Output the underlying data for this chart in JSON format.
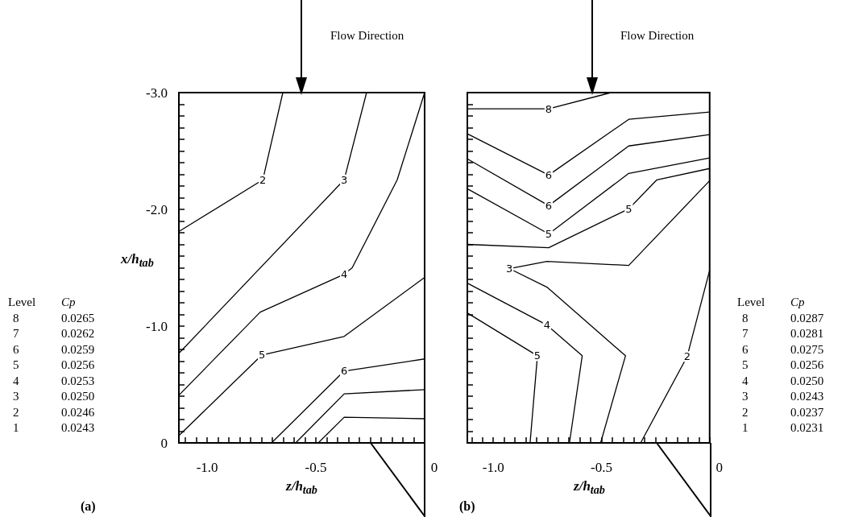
{
  "chart_data": [
    {
      "type": "line",
      "xlabel": "z/h$_{tab}$",
      "ylabel": "x/h$_{tab}$",
      "marker": "none",
      "xlim": [
        -1.13,
        0
      ],
      "ylim": [
        0,
        -3
      ],
      "xticks": [
        {
          "value": -1.1,
          "label": null
        },
        {
          "value": -1.05,
          "label": null
        },
        {
          "value": -1,
          "label": "-1.0"
        },
        {
          "value": -0.95,
          "label": null
        },
        {
          "value": -0.9,
          "label": null
        },
        {
          "value": -0.85,
          "label": null
        },
        {
          "value": -0.8,
          "label": null
        },
        {
          "value": -0.75,
          "label": null
        },
        {
          "value": -0.7,
          "label": null
        },
        {
          "value": -0.65,
          "label": null
        },
        {
          "value": -0.6,
          "label": null
        },
        {
          "value": -0.55,
          "label": null
        },
        {
          "value": -0.5,
          "label": "-0.5"
        },
        {
          "value": -0.45,
          "label": null
        },
        {
          "value": -0.4,
          "label": null
        },
        {
          "value": -0.35,
          "label": null
        },
        {
          "value": -0.3,
          "label": null
        },
        {
          "value": -0.25,
          "label": null
        },
        {
          "value": -0.2,
          "label": null
        },
        {
          "value": -0.15,
          "label": null
        },
        {
          "value": -0.1,
          "label": null
        },
        {
          "value": -0.05,
          "label": null
        },
        {
          "value": 0,
          "label": "0"
        }
      ],
      "yticks": [
        {
          "value": -3,
          "label": "-3.0"
        },
        {
          "value": -2.9,
          "label": null
        },
        {
          "value": -2.8,
          "label": null
        },
        {
          "value": -2.7,
          "label": null
        },
        {
          "value": -2.6,
          "label": null
        },
        {
          "value": -2.5,
          "label": null
        },
        {
          "value": -2.4,
          "label": null
        },
        {
          "value": -2.3,
          "label": null
        },
        {
          "value": -2.2,
          "label": null
        },
        {
          "value": -2.1,
          "label": null
        },
        {
          "value": -2,
          "label": "-2.0"
        },
        {
          "value": -1.9,
          "label": null
        },
        {
          "value": -1.8,
          "label": null
        },
        {
          "value": -1.7,
          "label": null
        },
        {
          "value": -1.6,
          "label": null
        },
        {
          "value": -1.5,
          "label": null
        },
        {
          "value": -1.4,
          "label": null
        },
        {
          "value": -1.3,
          "label": null
        },
        {
          "value": -1.2,
          "label": null
        },
        {
          "value": -1.1,
          "label": null
        },
        {
          "value": -1,
          "label": "-1.0"
        },
        {
          "value": -0.9,
          "label": null
        },
        {
          "value": -0.8,
          "label": null
        },
        {
          "value": -0.7,
          "label": null
        },
        {
          "value": -0.6,
          "label": null
        },
        {
          "value": -0.5,
          "label": null
        },
        {
          "value": -0.4,
          "label": null
        },
        {
          "value": -0.3,
          "label": null
        },
        {
          "value": -0.2,
          "label": null
        },
        {
          "value": -0.1,
          "label": null
        },
        0
      ],
      "annotations": [
        "Flow Direction",
        "(a)",
        "Level",
        "Cp",
        "8",
        "0.0265",
        "7",
        "0.0262",
        "6",
        "0.0259",
        "5",
        "0.0256",
        "4",
        "0.0253",
        "3",
        "0.0250",
        "2",
        "0.0246",
        "1",
        "0.0243"
      ],
      "series": [
        {
          "name": "2",
          "color": "#000000",
          "x": [
            -1.13,
            -0.744,
            -0.652
          ],
          "values": [
            -1.81,
            -2.253,
            -3.0
          ]
        },
        {
          "name": "3",
          "color": "#000000",
          "x": [
            -1.13,
            -0.37,
            -0.267
          ],
          "values": [
            -0.767,
            -2.253,
            -3.0
          ]
        },
        {
          "name": "4",
          "color": "#000000",
          "x": [
            -1.13,
            -0.756,
            -0.37,
            -0.333,
            -0.126,
            0
          ],
          "values": [
            -0.408,
            -1.12,
            -1.444,
            -1.5,
            -2.253,
            -3.0
          ]
        },
        {
          "name": "5",
          "color": "#000000",
          "x": [
            -1.13,
            -0.748,
            -0.37,
            0
          ],
          "values": [
            -0.062,
            -0.753,
            -0.912,
            -1.417
          ]
        },
        {
          "name": "6",
          "color": "#000000",
          "x": [
            -0.704,
            -0.37,
            0
          ],
          "values": [
            0,
            -0.615,
            -0.719
          ]
        },
        {
          "color": "#000000",
          "x": [
            -0.593,
            -0.37,
            0
          ],
          "values": [
            0,
            -0.42,
            -0.456
          ]
        },
        {
          "color": "#000000",
          "x": [
            -0.489,
            -0.37,
            0
          ],
          "values": [
            0,
            -0.22,
            -0.207
          ]
        }
      ]
    },
    {
      "type": "line",
      "xlabel": "z/h$_{tab}$",
      "marker": "none",
      "tick_labels": "x",
      "xlim": [
        -1.12,
        0
      ],
      "ylim": [
        0,
        -3
      ],
      "xticks": [
        {
          "value": -1.1,
          "label": null
        },
        {
          "value": -1.05,
          "label": null
        },
        {
          "value": -1,
          "label": "-1.0"
        },
        {
          "value": -0.95,
          "label": null
        },
        {
          "value": -0.9,
          "label": null
        },
        {
          "value": -0.85,
          "label": null
        },
        {
          "value": -0.8,
          "label": null
        },
        {
          "value": -0.75,
          "label": null
        },
        {
          "value": -0.7,
          "label": null
        },
        {
          "value": -0.65,
          "label": null
        },
        {
          "value": -0.6,
          "label": null
        },
        {
          "value": -0.55,
          "label": null
        },
        {
          "value": -0.5,
          "label": "-0.5"
        },
        {
          "value": -0.45,
          "label": null
        },
        {
          "value": -0.4,
          "label": null
        },
        {
          "value": -0.35,
          "label": null
        },
        {
          "value": -0.3,
          "label": null
        },
        {
          "value": -0.25,
          "label": null
        },
        {
          "value": -0.2,
          "label": null
        },
        {
          "value": -0.15,
          "label": null
        },
        {
          "value": -0.1,
          "label": null
        },
        {
          "value": -0.05,
          "label": null
        },
        {
          "value": 0,
          "label": "0"
        }
      ],
      "yticks": [
        -3,
        -2.9,
        -2.8,
        -2.7,
        -2.6,
        -2.5,
        -2.4,
        -2.3,
        -2.2,
        -2.1,
        -2,
        -1.9,
        -1.8,
        -1.7,
        -1.6,
        -1.5,
        -1.4,
        -1.3,
        -1.2,
        -1.1,
        -1,
        -0.9,
        -0.8,
        -0.7,
        -0.6,
        -0.5,
        -0.4,
        -0.3,
        -0.2,
        -0.1,
        0
      ],
      "annotations": [
        "Flow Direction",
        "(b)",
        "Level",
        "Cp",
        "8",
        "0.0287",
        "7",
        "0.0281",
        "6",
        "0.0275",
        "5",
        "0.0256",
        "4",
        "0.0250",
        "3",
        "0.0243",
        "2",
        "0.0237",
        "1",
        "0.0231"
      ],
      "series": [
        {
          "name": "8",
          "color": "#000000",
          "x": [
            -1.12,
            -0.744,
            -0.456
          ],
          "values": [
            -2.861,
            -2.861,
            -3.0
          ]
        },
        {
          "name": "6",
          "color": "#000000",
          "x": [
            -1.12,
            -0.744,
            -0.374,
            0
          ],
          "values": [
            -2.647,
            -2.294,
            -2.771,
            -2.833
          ]
        },
        {
          "name": "6",
          "color": "#000000",
          "x": [
            -1.12,
            -0.744,
            -0.374,
            0
          ],
          "values": [
            -2.433,
            -2.032,
            -2.543,
            -2.64
          ]
        },
        {
          "name": "5",
          "color": "#000000",
          "x": [
            -1.12,
            -0.744,
            -0.374,
            0
          ],
          "values": [
            -2.177,
            -1.79,
            -2.308,
            -2.44
          ]
        },
        {
          "name": "5",
          "color": "#000000",
          "x": [
            -1.12,
            -0.744,
            -0.374,
            -0.244,
            0
          ],
          "values": [
            -1.7,
            -1.672,
            -2.004,
            -2.253,
            -2.35
          ]
        },
        {
          "name": "3",
          "color": "#000000",
          "x": [
            0,
            -0.374,
            -0.752,
            -0.926,
            -0.752,
            -0.389,
            -0.504
          ],
          "values": [
            -2.246,
            -1.52,
            -1.555,
            -1.493,
            -1.334,
            -0.746,
            0
          ]
        },
        {
          "name": "4",
          "color": "#000000",
          "x": [
            -1.12,
            -0.752,
            -0.589,
            -0.648
          ],
          "values": [
            -1.368,
            -1.009,
            -0.746,
            0
          ]
        },
        {
          "name": "5",
          "color": "#000000",
          "x": [
            -1.12,
            -0.796,
            -0.83
          ],
          "values": [
            -1.113,
            -0.746,
            0
          ]
        },
        {
          "name": "2",
          "color": "#000000",
          "x": [
            0,
            -0.104,
            -0.319
          ],
          "values": [
            -1.479,
            -0.74,
            0
          ]
        }
      ]
    }
  ]
}
